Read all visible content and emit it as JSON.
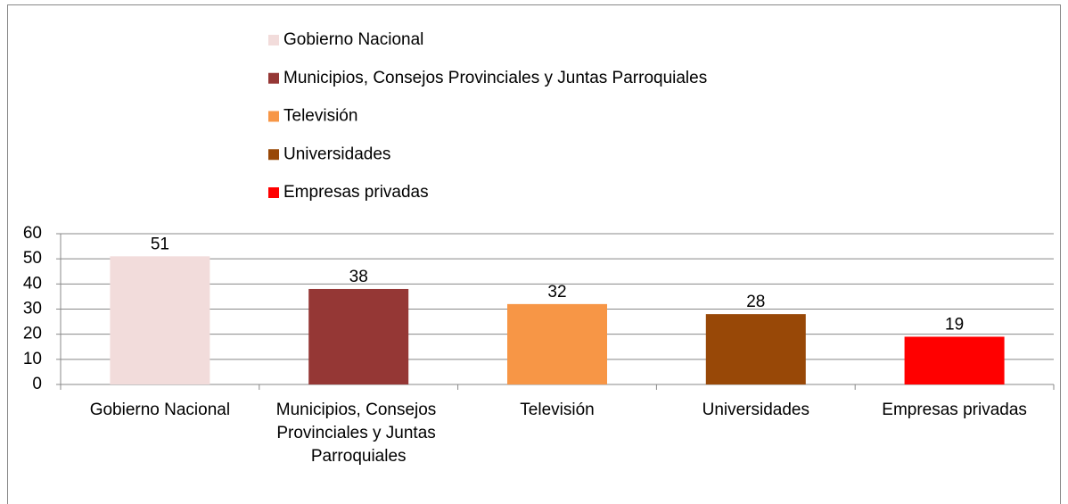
{
  "chart_data": {
    "type": "bar",
    "categories": [
      "Gobierno Nacional",
      "Municipios, Consejos Provinciales y Juntas Parroquiales",
      "Televisión",
      "Universidades",
      "Empresas privadas"
    ],
    "values": [
      51,
      38,
      32,
      28,
      19
    ],
    "colors": [
      "#f2dcdb",
      "#953735",
      "#f79646",
      "#984807",
      "#ff0000"
    ],
    "ylim": [
      0,
      60
    ],
    "yticks": [
      0,
      10,
      20,
      30,
      40,
      50,
      60
    ],
    "grid": true,
    "legend": "top"
  }
}
